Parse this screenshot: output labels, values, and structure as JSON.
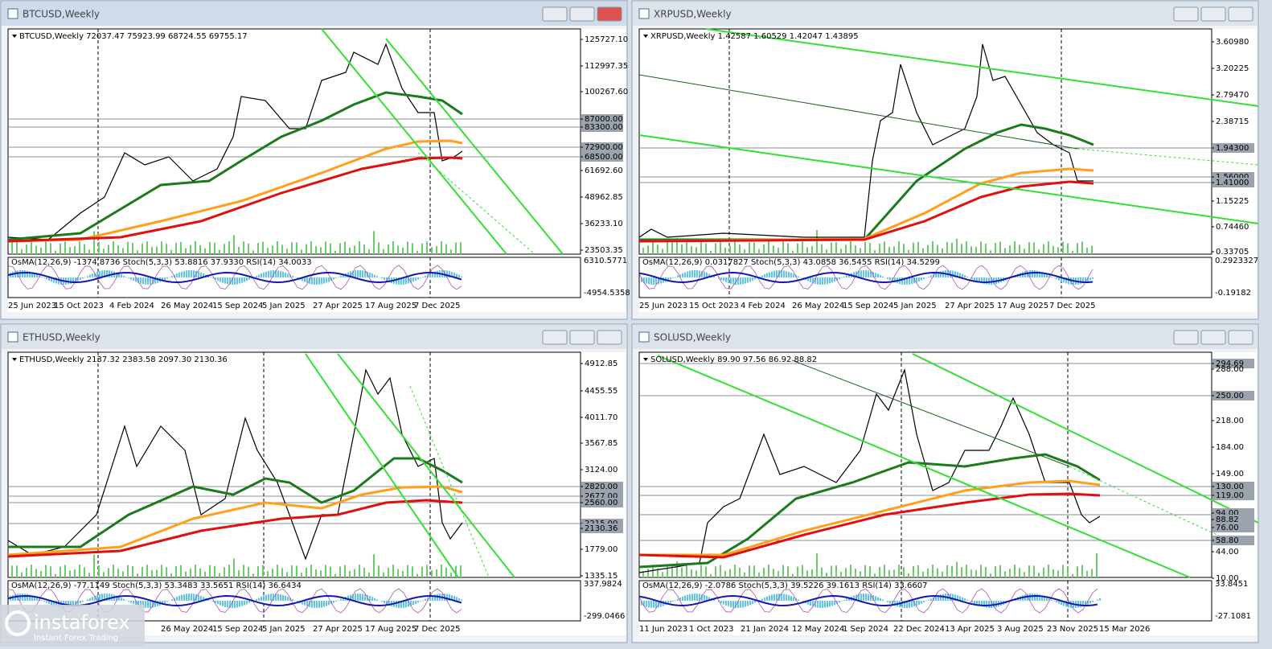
{
  "windows": [
    {
      "title": "BTCUSD,Weekly",
      "info": "BTCUSD,Weekly  72037.47 75923.99 68724.55 69755.17",
      "price_labels": [
        "125727.10",
        "112997.35",
        "100267.60",
        "87000.00",
        "83300.00",
        "72900.00",
        "68500.00",
        "61692.60",
        "48962.85",
        "36233.10",
        "23503.35"
      ],
      "indicator": "OsMA(12,26,9) -1374.8736  Stoch(5,3,3) 53.8816 37.9330  RSI(14) 34.0033",
      "indicator_labels": [
        "6310.5771",
        "-4954.5358"
      ],
      "dates": [
        "25 Jun 2023",
        "15 Oct 2023",
        "4 Feb 2024",
        "26 May 2024",
        "15 Sep 2024",
        "5 Jan 2025",
        "27 Apr 2025",
        "17 Aug 2025",
        "7 Dec 2025"
      ]
    },
    {
      "title": "XRPUSD,Weekly",
      "info": "XRPUSD,Weekly  1.42587 1.60529 1.42047 1.43895",
      "price_labels": [
        "3.60980",
        "3.20225",
        "2.79470",
        "2.38715",
        "1.94300",
        "1.56000",
        "1.41000",
        "1.15225",
        "0.74460",
        "0.33705"
      ],
      "indicator": "OsMA(12,26,9) 0.0317827  Stoch(5,3,3) 43.0858 36.5455  RSI(14) 34.5299",
      "indicator_labels": [
        "0.2923327",
        "-0.19182"
      ],
      "dates": [
        "25 Jun 2023",
        "15 Oct 2023",
        "4 Feb 2024",
        "26 May 2024",
        "15 Sep 2024",
        "5 Jan 2025",
        "27 Apr 2025",
        "17 Aug 2025",
        "7 Dec 2025"
      ]
    },
    {
      "title": "ETHUSD,Weekly",
      "info": "ETHUSD,Weekly  2137.32 2383.58 2097.30 2130.36",
      "price_labels": [
        "4912.85",
        "4455.55",
        "4011.70",
        "3567.85",
        "3124.00",
        "2820.00",
        "2677.00",
        "2560.00",
        "2215.00",
        "2130.36",
        "1779.00",
        "1335.15"
      ],
      "indicator": "OsMA(12,26,9) -77.1149  Stoch(5,3,3) 53.3483 33.5651  RSI(14) 36.6434",
      "indicator_labels": [
        "337.9824",
        "-299.0466"
      ],
      "dates": [
        "26 May 2024",
        "15 Sep 2024",
        "5 Jan 2025",
        "27 Apr 2025",
        "17 Aug 2025",
        "7 Dec 2025"
      ]
    },
    {
      "title": "SOLUSD,Weekly",
      "info": "SOLUSD,Weekly  89.90 97.56 86.92 88.82",
      "price_labels": [
        "294.69",
        "288.00",
        "250.00",
        "218.00",
        "184.00",
        "149.00",
        "130.00",
        "119.00",
        "94.00",
        "88.82",
        "76.00",
        "58.80",
        "44.00",
        "10.00"
      ],
      "indicator": "OsMA(12,26,9) -2.0786  Stoch(5,3,3) 39.5226 39.1613  RSI(14) 33.6607",
      "indicator_labels": [
        "33.8451",
        "-27.1081"
      ],
      "dates": [
        "11 Jun 2023",
        "1 Oct 2023",
        "21 Jan 2024",
        "12 May 2024",
        "1 Sep 2024",
        "22 Dec 2024",
        "13 Apr 2025",
        "3 Aug 2025",
        "23 Nov 2025",
        "15 Mar 2026"
      ]
    }
  ],
  "logo": {
    "name": "instaforex",
    "tagline": "Instant Forex Trading"
  }
}
